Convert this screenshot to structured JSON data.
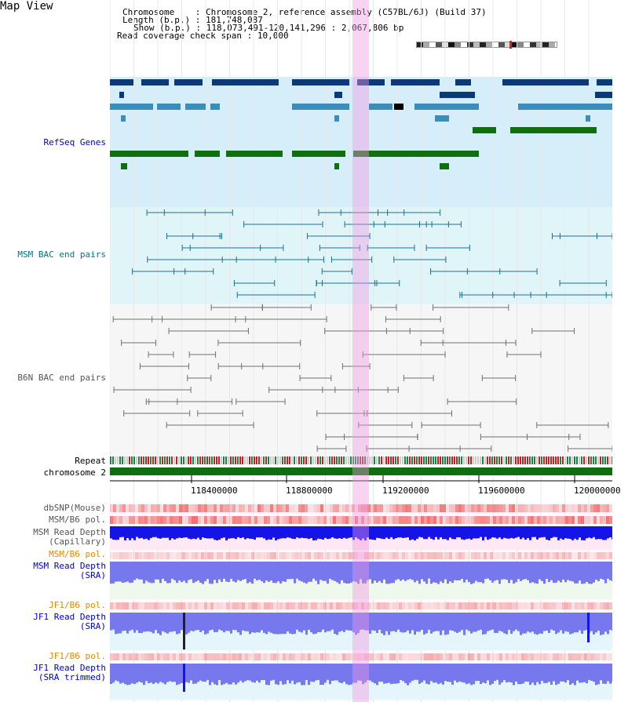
{
  "view_title": "Map View",
  "info": {
    "chromosome_label": "Chromosome",
    "chromosome_value": "Chromosome 2, reference assembly (C57BL/6J) (Build 37)",
    "length_label": "Length (b.p.)",
    "length_value": "181,748,087",
    "show_label": "Show (b.p.)",
    "show_value": "118,073,491-120,141,296 : 2,067,806 bp",
    "coverage_label": "Read coverage check span",
    "coverage_value": "10,000"
  },
  "tracks": {
    "refseq": "RefSeq Genes",
    "msm_bac": "MSM BAC end pairs",
    "b6n_bac": "B6N BAC end pairs",
    "repeat": "Repeat",
    "chromosome": "chromosome 2",
    "dbsnp": "dbSNP(Mouse)",
    "msm_b6_pol": "MSM/B6 pol.",
    "msm_depth_cap_1": "MSM Read Depth",
    "msm_depth_cap_2": "(Capillary)",
    "msm_b6_pol_2": "MSM/B6 pol.",
    "msm_depth_sra_1": "MSM Read Depth",
    "msm_depth_sra_2": "(SRA)",
    "jf1_b6_pol": "JF1/B6 pol.",
    "jf1_depth_sra_1": "JF1 Read Depth",
    "jf1_depth_sra_2": "(SRA)",
    "jf1_b6_pol_2": "JF1/B6 pol.",
    "jf1_depth_trim_1": "JF1 Read Depth",
    "jf1_depth_trim_2": "(SRA trimmed)"
  },
  "axis_ticks": [
    "118400000",
    "118800000",
    "119200000",
    "119600000",
    "120000000"
  ],
  "colors": {
    "refseq_bg": "#d6eefa",
    "msm_bg": "#e0f5f8",
    "gene_dark": "#0a3a78",
    "gene_mid": "#3b8dba",
    "gene_green": "#107010",
    "msm_line": "#1c7090",
    "b6n_line": "#707070",
    "depth_blue": "#1414e6",
    "depth_violet": "#7878ee",
    "pol_red": "#e83030",
    "chrom_green": "#0f6e0f",
    "label_blue": "#0000cc",
    "label_teal": "#007488",
    "label_orange": "#e08c00",
    "label_gray": "#555555"
  }
}
